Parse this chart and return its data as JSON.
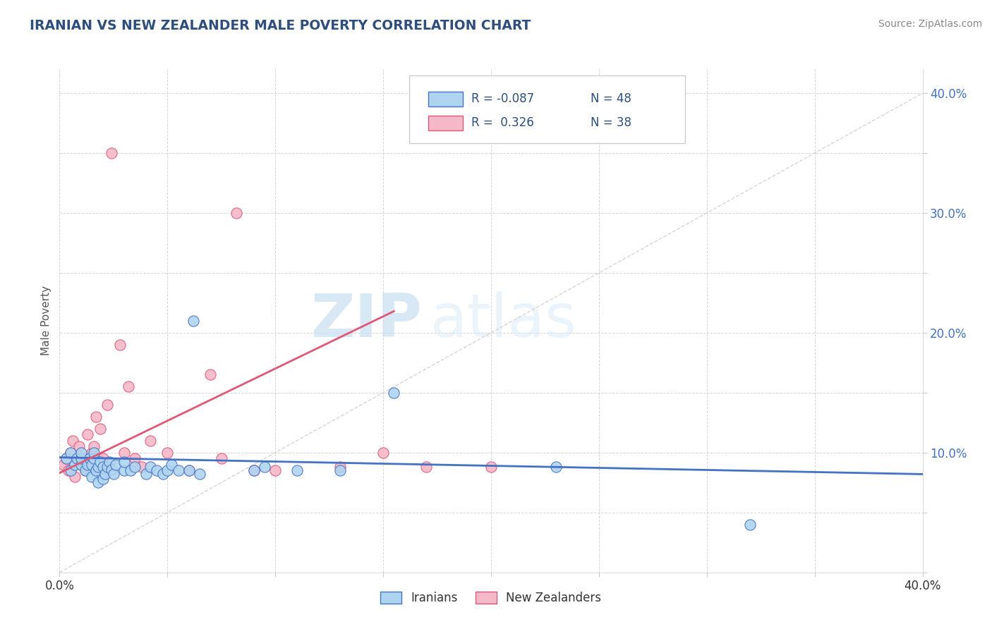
{
  "title": "IRANIAN VS NEW ZEALANDER MALE POVERTY CORRELATION CHART",
  "source": "Source: ZipAtlas.com",
  "ylabel": "Male Poverty",
  "xlim": [
    0.0,
    0.4
  ],
  "ylim": [
    0.0,
    0.42
  ],
  "color_iranian": "#aed4f0",
  "color_nz": "#f4b8c8",
  "color_line_iranian": "#4472c4",
  "color_line_nz": "#e05878",
  "watermark_zip": "ZIP",
  "watermark_atlas": "atlas",
  "iranians_x": [
    0.003,
    0.005,
    0.005,
    0.007,
    0.008,
    0.01,
    0.01,
    0.01,
    0.012,
    0.013,
    0.014,
    0.015,
    0.015,
    0.016,
    0.016,
    0.017,
    0.018,
    0.018,
    0.019,
    0.02,
    0.02,
    0.021,
    0.022,
    0.023,
    0.024,
    0.025,
    0.026,
    0.03,
    0.03,
    0.033,
    0.035,
    0.04,
    0.042,
    0.045,
    0.048,
    0.05,
    0.052,
    0.055,
    0.06,
    0.062,
    0.065,
    0.09,
    0.095,
    0.11,
    0.13,
    0.155,
    0.23,
    0.32
  ],
  "iranians_y": [
    0.095,
    0.085,
    0.1,
    0.09,
    0.095,
    0.09,
    0.095,
    0.1,
    0.085,
    0.09,
    0.095,
    0.08,
    0.09,
    0.095,
    0.1,
    0.085,
    0.075,
    0.088,
    0.092,
    0.078,
    0.088,
    0.082,
    0.088,
    0.092,
    0.086,
    0.082,
    0.09,
    0.085,
    0.092,
    0.085,
    0.088,
    0.082,
    0.088,
    0.085,
    0.082,
    0.085,
    0.09,
    0.085,
    0.085,
    0.21,
    0.082,
    0.085,
    0.088,
    0.085,
    0.085,
    0.15,
    0.088,
    0.04
  ],
  "nz_x": [
    0.002,
    0.003,
    0.004,
    0.005,
    0.006,
    0.007,
    0.008,
    0.009,
    0.01,
    0.011,
    0.012,
    0.013,
    0.014,
    0.015,
    0.016,
    0.017,
    0.018,
    0.019,
    0.02,
    0.022,
    0.024,
    0.028,
    0.03,
    0.032,
    0.035,
    0.038,
    0.042,
    0.05,
    0.06,
    0.07,
    0.075,
    0.082,
    0.09,
    0.1,
    0.13,
    0.15,
    0.17,
    0.2
  ],
  "nz_y": [
    0.09,
    0.095,
    0.085,
    0.1,
    0.11,
    0.08,
    0.095,
    0.105,
    0.09,
    0.095,
    0.085,
    0.115,
    0.09,
    0.1,
    0.105,
    0.13,
    0.095,
    0.12,
    0.095,
    0.14,
    0.35,
    0.19,
    0.1,
    0.155,
    0.095,
    0.088,
    0.11,
    0.1,
    0.085,
    0.165,
    0.095,
    0.3,
    0.085,
    0.085,
    0.088,
    0.1,
    0.088,
    0.088
  ]
}
